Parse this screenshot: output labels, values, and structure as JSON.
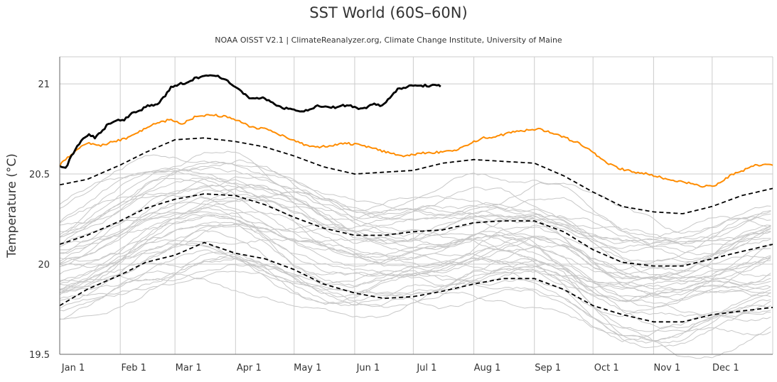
{
  "chart_data": {
    "type": "line",
    "title": "SST World (60S–60N)",
    "subtitle": "NOAA OISST V2.1 | ClimateReanalyzer.org, Climate Change Institute, University of Maine",
    "ylabel": "Temperature (°C)",
    "xlabel": "",
    "x_axis": {
      "unit": "day of year",
      "range": [
        1,
        366
      ]
    },
    "xlim": [
      1,
      366
    ],
    "ylim": [
      19.5,
      21.15
    ],
    "yticks": [
      19.5,
      20,
      20.5,
      21
    ],
    "ytick_labels": [
      "19.5",
      "20",
      "20.5",
      "21"
    ],
    "month_ticks": [
      {
        "label": "Jan 1",
        "day": 1
      },
      {
        "label": "Feb 1",
        "day": 32
      },
      {
        "label": "Mar 1",
        "day": 60
      },
      {
        "label": "Apr 1",
        "day": 91
      },
      {
        "label": "May 1",
        "day": 121
      },
      {
        "label": "Jun 1",
        "day": 152
      },
      {
        "label": "Jul 1",
        "day": 182
      },
      {
        "label": "Aug 1",
        "day": 213
      },
      {
        "label": "Sep 1",
        "day": 244
      },
      {
        "label": "Oct 1",
        "day": 274
      },
      {
        "label": "Nov 1",
        "day": 305
      },
      {
        "label": "Dec 1",
        "day": 335
      }
    ],
    "grid": true,
    "legend": "none",
    "colors": {
      "current_year": "#000000",
      "previous_year": "#ff8c00",
      "climatology": "#000000",
      "other_years": "#c8c8c8",
      "grid": "#cccccc"
    },
    "series": [
      {
        "role": "current-year",
        "color": "#000000",
        "style": "solid",
        "x": [
          1,
          4,
          7,
          10,
          13,
          16,
          19,
          22,
          26,
          30,
          34,
          38,
          42,
          46,
          50,
          54,
          58,
          62,
          66,
          70,
          74,
          78,
          82,
          86,
          90,
          94,
          98,
          102,
          106,
          110,
          114,
          118,
          122,
          126,
          130,
          134,
          138,
          142,
          146,
          150,
          154,
          158,
          162,
          166,
          170,
          174,
          178,
          182,
          186,
          190,
          193,
          196
        ],
        "y": [
          20.55,
          20.53,
          20.6,
          20.65,
          20.7,
          20.72,
          20.7,
          20.73,
          20.78,
          20.8,
          20.8,
          20.84,
          20.85,
          20.88,
          20.88,
          20.92,
          20.98,
          21.0,
          21.0,
          21.03,
          21.04,
          21.05,
          21.04,
          21.02,
          20.99,
          20.96,
          20.92,
          20.92,
          20.92,
          20.9,
          20.87,
          20.86,
          20.85,
          20.85,
          20.86,
          20.88,
          20.87,
          20.87,
          20.88,
          20.88,
          20.86,
          20.87,
          20.89,
          20.88,
          20.92,
          20.97,
          20.98,
          20.99,
          20.99,
          20.99,
          20.99,
          20.99
        ]
      },
      {
        "role": "previous-year",
        "color": "#ff8c00",
        "style": "solid",
        "x": [
          1,
          8,
          15,
          22,
          29,
          36,
          43,
          50,
          57,
          64,
          71,
          78,
          85,
          92,
          99,
          106,
          113,
          120,
          127,
          134,
          141,
          148,
          155,
          162,
          169,
          176,
          183,
          190,
          197,
          204,
          211,
          218,
          225,
          232,
          239,
          246,
          253,
          260,
          267,
          274,
          281,
          288,
          295,
          302,
          309,
          316,
          323,
          330,
          337,
          344,
          351,
          358,
          366
        ],
        "y": [
          20.55,
          20.62,
          20.67,
          20.66,
          20.68,
          20.7,
          20.74,
          20.78,
          20.8,
          20.78,
          20.82,
          20.83,
          20.82,
          20.8,
          20.76,
          20.75,
          20.72,
          20.69,
          20.66,
          20.65,
          20.66,
          20.67,
          20.66,
          20.64,
          20.62,
          20.6,
          20.61,
          20.62,
          20.62,
          20.63,
          20.67,
          20.7,
          20.71,
          20.73,
          20.74,
          20.75,
          20.73,
          20.7,
          20.67,
          20.62,
          20.56,
          20.53,
          20.51,
          20.5,
          20.48,
          20.46,
          20.45,
          20.43,
          20.44,
          20.49,
          20.52,
          20.55,
          20.55
        ]
      },
      {
        "role": "climatology-plus-2sd",
        "color": "#000000",
        "style": "dashed",
        "x": [
          1,
          15,
          32,
          45,
          60,
          75,
          91,
          106,
          121,
          136,
          152,
          167,
          182,
          197,
          213,
          228,
          244,
          259,
          274,
          289,
          305,
          320,
          335,
          350,
          366
        ],
        "y": [
          20.44,
          20.47,
          20.55,
          20.62,
          20.69,
          20.7,
          20.68,
          20.65,
          20.6,
          20.54,
          20.5,
          20.51,
          20.52,
          20.56,
          20.58,
          20.57,
          20.56,
          20.49,
          20.4,
          20.32,
          20.29,
          20.28,
          20.32,
          20.38,
          20.42
        ]
      },
      {
        "role": "climatology-mean",
        "color": "#000000",
        "style": "dashed",
        "x": [
          1,
          15,
          32,
          45,
          60,
          75,
          91,
          106,
          121,
          136,
          152,
          167,
          182,
          197,
          213,
          228,
          244,
          259,
          274,
          289,
          305,
          320,
          335,
          350,
          366
        ],
        "y": [
          20.11,
          20.16,
          20.24,
          20.31,
          20.36,
          20.39,
          20.38,
          20.33,
          20.26,
          20.2,
          20.16,
          20.16,
          20.18,
          20.19,
          20.23,
          20.24,
          20.24,
          20.18,
          20.08,
          20.01,
          19.99,
          19.99,
          20.03,
          20.07,
          20.11
        ]
      },
      {
        "role": "climatology-minus-2sd",
        "color": "#000000",
        "style": "dashed",
        "x": [
          1,
          15,
          32,
          45,
          60,
          75,
          91,
          106,
          121,
          136,
          152,
          167,
          182,
          197,
          213,
          228,
          244,
          259,
          274,
          289,
          305,
          320,
          335,
          350,
          366
        ],
        "y": [
          19.77,
          19.86,
          19.94,
          20.01,
          20.05,
          20.12,
          20.06,
          20.03,
          19.97,
          19.89,
          19.84,
          19.81,
          19.82,
          19.85,
          19.89,
          19.92,
          19.92,
          19.86,
          19.77,
          19.72,
          19.68,
          19.68,
          19.72,
          19.74,
          19.76
        ]
      }
    ],
    "background_years": {
      "color": "#c8c8c8",
      "count": 40,
      "mean_offset_range": [
        -0.42,
        0.2
      ],
      "seasonal_cycle": {
        "x": [
          1,
          15,
          32,
          45,
          60,
          75,
          91,
          106,
          121,
          136,
          152,
          167,
          182,
          197,
          213,
          228,
          244,
          259,
          274,
          289,
          305,
          320,
          335,
          350,
          366
        ],
        "y": [
          20.11,
          20.16,
          20.24,
          20.31,
          20.36,
          20.39,
          20.38,
          20.33,
          20.26,
          20.2,
          20.16,
          20.16,
          20.18,
          20.19,
          20.23,
          20.24,
          20.24,
          20.18,
          20.08,
          20.01,
          19.99,
          19.99,
          20.03,
          20.07,
          20.11
        ]
      }
    }
  }
}
